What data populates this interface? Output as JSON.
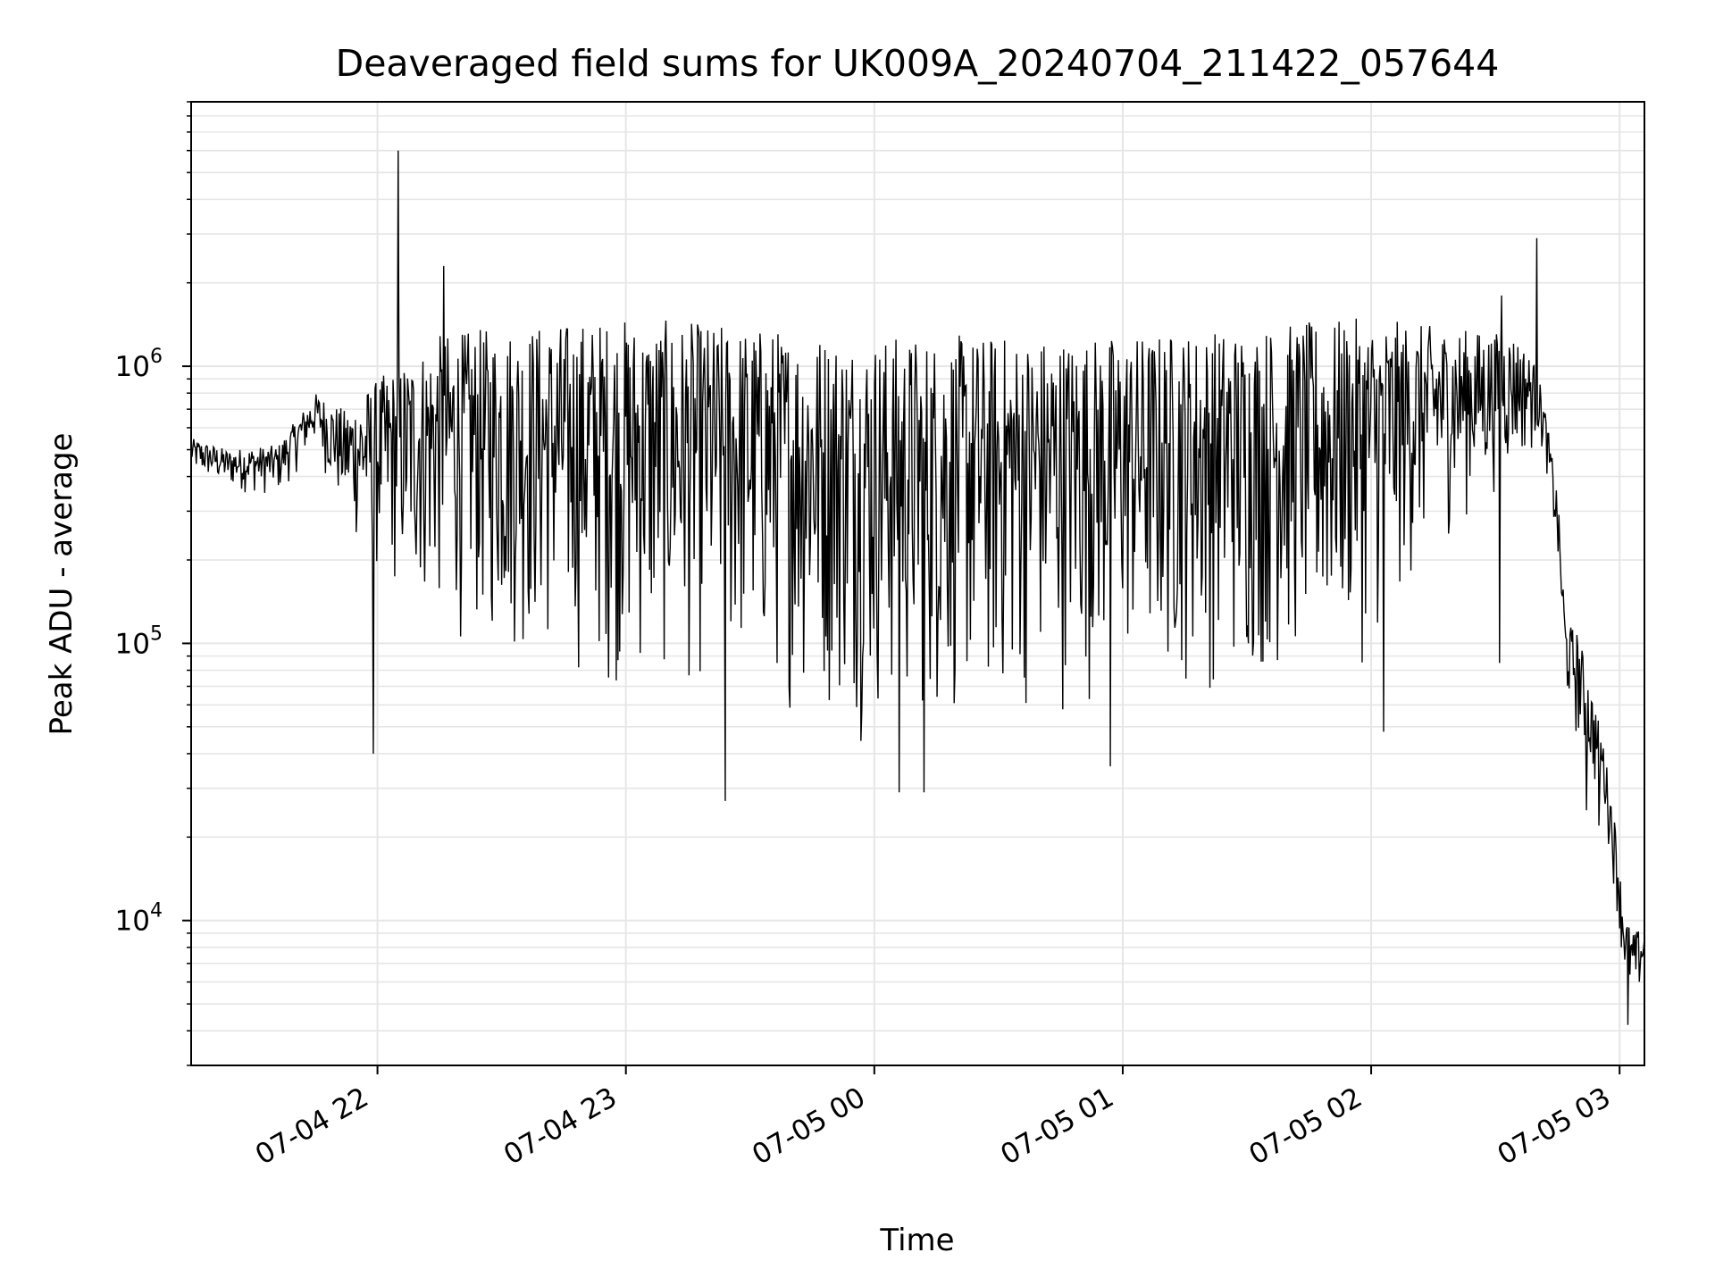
{
  "chart_data": {
    "type": "line",
    "title": "Deaveraged field sums for UK009A_20240704_211422_057644",
    "xlabel": "Time",
    "ylabel": "Peak ADU - average",
    "y_scale": "log",
    "ylim": [
      3000,
      9000000
    ],
    "xlim": [
      "2024-07-04T21:15:00",
      "2024-07-05T03:06:00"
    ],
    "x_ticks": [
      {
        "time": "2024-07-04T22:00:00",
        "label": "07-04 22"
      },
      {
        "time": "2024-07-04T23:00:00",
        "label": "07-04 23"
      },
      {
        "time": "2024-07-05T00:00:00",
        "label": "07-05 00"
      },
      {
        "time": "2024-07-05T01:00:00",
        "label": "07-05 01"
      },
      {
        "time": "2024-07-05T02:00:00",
        "label": "07-05 02"
      },
      {
        "time": "2024-07-05T03:00:00",
        "label": "07-05 03"
      }
    ],
    "y_ticks": [
      {
        "value": 10000,
        "base": "10",
        "exp": "4"
      },
      {
        "value": 100000,
        "base": "10",
        "exp": "5"
      },
      {
        "value": 1000000,
        "base": "10",
        "exp": "6"
      }
    ],
    "grid": true,
    "line_color": "#000000",
    "grid_color": "#e6e6e6",
    "envelope": [
      [
        "2024-07-04T21:15:00",
        400000,
        550000
      ],
      [
        "2024-07-04T21:24:00",
        350000,
        500000
      ],
      [
        "2024-07-04T21:36:00",
        330000,
        520000
      ],
      [
        "2024-07-04T21:45:00",
        500000,
        800000
      ],
      [
        "2024-07-04T21:52:00",
        250000,
        700000
      ],
      [
        "2024-07-04T22:00:00",
        150000,
        900000
      ],
      [
        "2024-07-04T22:15:00",
        100000,
        1300000
      ],
      [
        "2024-07-04T22:30:00",
        80000,
        1400000
      ],
      [
        "2024-07-04T23:00:00",
        60000,
        1500000
      ],
      [
        "2024-07-04T23:30:00",
        60000,
        1400000
      ],
      [
        "2024-07-05T00:00:00",
        40000,
        1300000
      ],
      [
        "2024-07-05T00:30:00",
        45000,
        1300000
      ],
      [
        "2024-07-05T01:00:00",
        60000,
        1300000
      ],
      [
        "2024-07-05T01:30:00",
        60000,
        1400000
      ],
      [
        "2024-07-05T02:00:00",
        80000,
        1500000
      ],
      [
        "2024-07-05T02:15:00",
        200000,
        1400000
      ],
      [
        "2024-07-05T02:35:00",
        400000,
        1300000
      ],
      [
        "2024-07-05T02:40:00",
        500000,
        1000000
      ],
      [
        "2024-07-05T02:42:00",
        450000,
        700000
      ],
      [
        "2024-07-05T02:45:00",
        180000,
        350000
      ],
      [
        "2024-07-05T02:47:00",
        60000,
        120000
      ],
      [
        "2024-07-05T02:50:00",
        40000,
        110000
      ],
      [
        "2024-07-05T02:53:00",
        30000,
        70000
      ],
      [
        "2024-07-05T02:56:00",
        25000,
        45000
      ],
      [
        "2024-07-05T02:59:00",
        12000,
        22000
      ],
      [
        "2024-07-05T03:01:00",
        6000,
        11000
      ],
      [
        "2024-07-05T03:03:00",
        4500,
        9000
      ],
      [
        "2024-07-05T03:06:00",
        5500,
        9500
      ]
    ],
    "notable_points": [
      {
        "time": "2024-07-04T21:59:00",
        "value": 40000
      },
      {
        "time": "2024-07-04T22:05:00",
        "value": 6000000
      },
      {
        "time": "2024-07-04T22:16:00",
        "value": 2300000
      },
      {
        "time": "2024-07-04T23:24:00",
        "value": 27000
      },
      {
        "time": "2024-07-05T00:06:00",
        "value": 29000
      },
      {
        "time": "2024-07-05T00:12:00",
        "value": 29000
      },
      {
        "time": "2024-07-05T00:57:00",
        "value": 36000
      },
      {
        "time": "2024-07-05T02:03:00",
        "value": 48000
      },
      {
        "time": "2024-07-05T02:31:00",
        "value": 85000
      },
      {
        "time": "2024-07-05T02:31:30",
        "value": 1800000
      },
      {
        "time": "2024-07-05T02:40:00",
        "value": 2900000
      },
      {
        "time": "2024-07-05T02:52:00",
        "value": 25000
      },
      {
        "time": "2024-07-05T02:55:00",
        "value": 22000
      },
      {
        "time": "2024-07-05T03:02:00",
        "value": 4200
      }
    ]
  }
}
